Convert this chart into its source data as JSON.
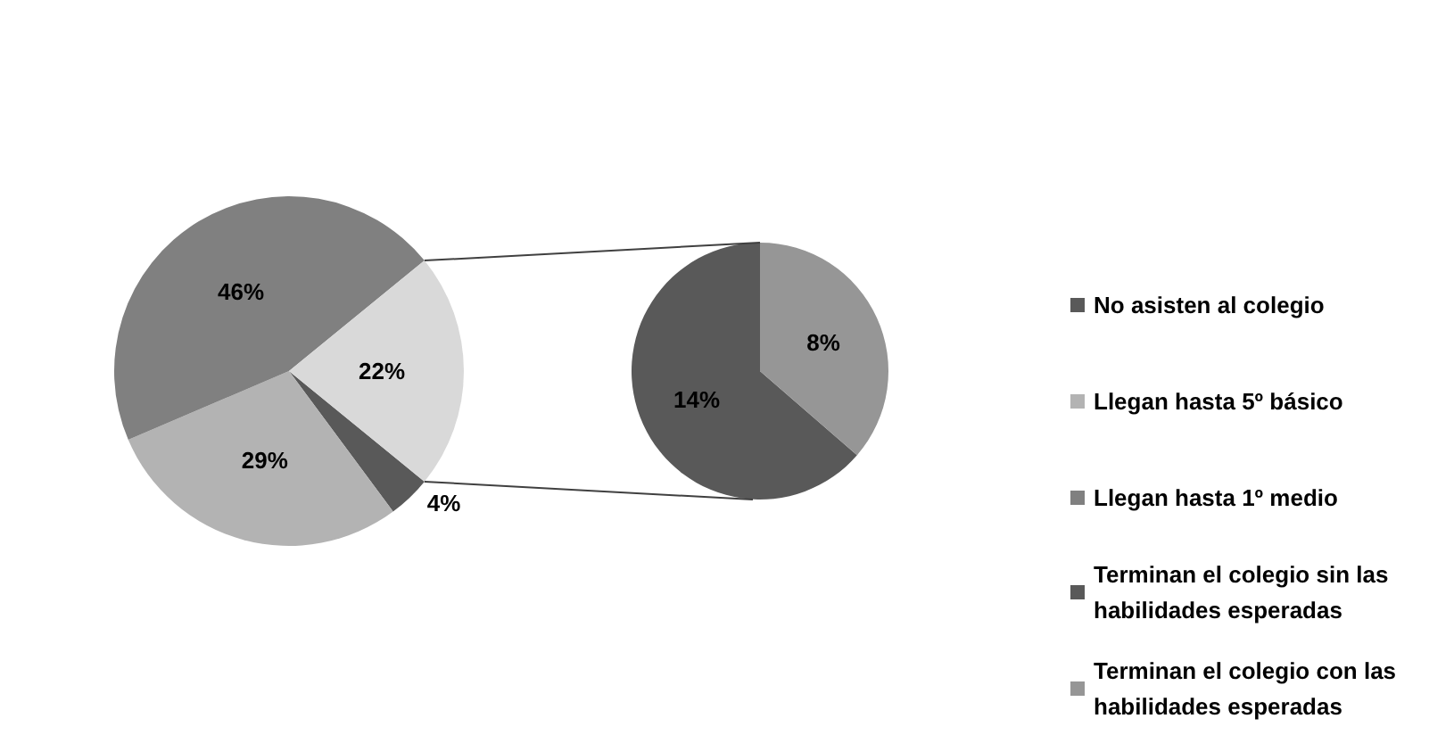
{
  "chart_data": [
    {
      "type": "pie",
      "categories": [
        "No asisten al colegio",
        "Llegan hasta 5º básico",
        "Llegan hasta 1º medio",
        null
      ],
      "values": [
        4,
        29,
        46,
        22
      ],
      "colors": [
        "#595959",
        "#b3b3b3",
        "#808080",
        "#d9d9d9"
      ],
      "value_labels": [
        "4%",
        "29%",
        "46%",
        "22%"
      ],
      "legend": "right"
    },
    {
      "type": "pie",
      "categories": [
        "Terminan el colegio sin las habilidades esperadas",
        "Terminan el colegio con las habilidades esperadas"
      ],
      "values": [
        14,
        8
      ],
      "colors": [
        "#595959",
        "#969696"
      ],
      "value_labels": [
        "14%",
        "8%"
      ],
      "legend": "right"
    }
  ]
}
